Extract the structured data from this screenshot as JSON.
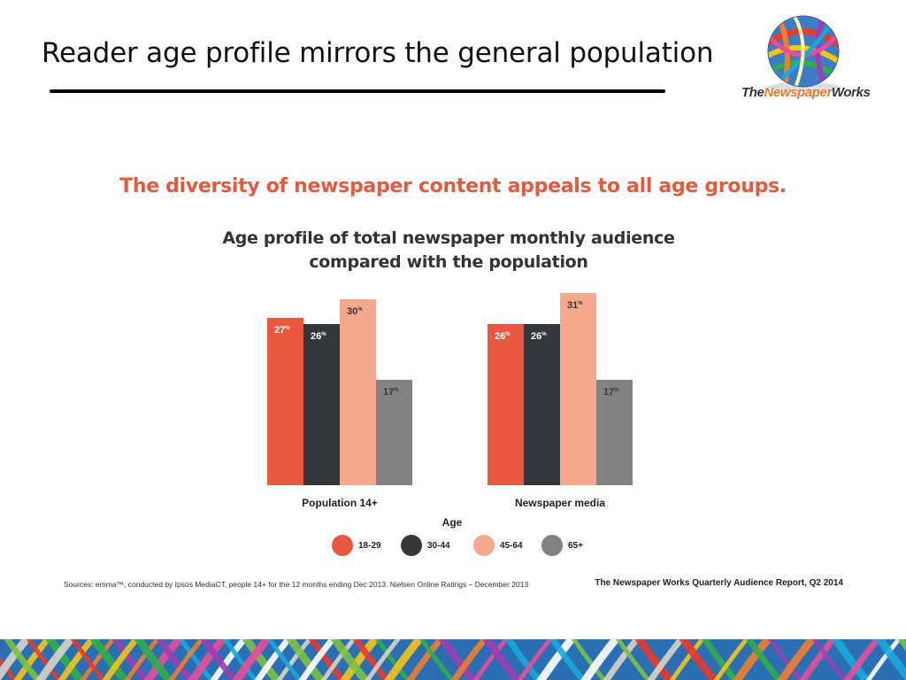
{
  "slide": {
    "title": "Reader age profile mirrors the general population"
  },
  "logo": {
    "wordmark_part_a": "The",
    "wordmark_part_b": "Newspaper",
    "wordmark_part_c": "Works"
  },
  "infographic": {
    "headline": "The diversity of newspaper content appeals to all age groups.",
    "chart_title_line1": "Age profile of total newspaper monthly audience",
    "chart_title_line2": "compared with the population"
  },
  "chart_data": {
    "type": "bar",
    "title": "Age profile of total newspaper monthly audience compared with the population",
    "categories": [
      "Population 14+",
      "Newspaper media"
    ],
    "xlabel": "Age",
    "ylabel": "",
    "unit": "%",
    "ylim": [
      0,
      35
    ],
    "grid": false,
    "legend_position": "bottom",
    "series": [
      {
        "name": "18-29",
        "values": [
          27,
          26
        ],
        "color": "#e8573e"
      },
      {
        "name": "30-44",
        "values": [
          26,
          26
        ],
        "color": "#35383b"
      },
      {
        "name": "45-64",
        "values": [
          30,
          31
        ],
        "color": "#f5a98c"
      },
      {
        "name": "65+",
        "values": [
          17,
          17
        ],
        "color": "#828284"
      }
    ]
  },
  "footer": {
    "sources": "Sources: emma™, conducted by Ipsos MediaCT, people 14+ for the 12 months ending Dec 2013. Nielsen Online Ratings – December 2013",
    "report": "The Newspaper Works Quarterly Audience Report, Q2 2014"
  },
  "colors": {
    "headline": "#e55a3c",
    "band": "#2a6fb3"
  }
}
